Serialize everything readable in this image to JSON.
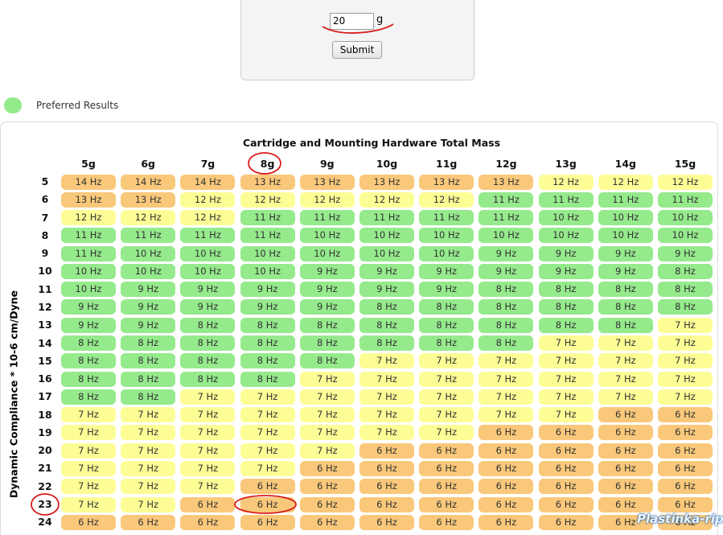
{
  "form": {
    "input_value": "20",
    "unit": "g",
    "button": "Submit"
  },
  "legend": {
    "label": "Preferred Results",
    "color": "#95ea8c"
  },
  "table": {
    "title": "Cartridge and Mounting Hardware Total Mass",
    "y_label": "Dynamic Compliance * 10-6 cm/Dyne",
    "columns": [
      "5g",
      "6g",
      "7g",
      "8g",
      "9g",
      "10g",
      "11g",
      "12g",
      "13g",
      "14g",
      "15g"
    ],
    "rows": [
      {
        "label": "5",
        "cells": [
          "14 Hz",
          "14 Hz",
          "14 Hz",
          "13 Hz",
          "13 Hz",
          "13 Hz",
          "13 Hz",
          "13 Hz",
          "12 Hz",
          "12 Hz",
          "12 Hz"
        ],
        "colors": [
          "#fac87a",
          "#fac87a",
          "#fac87a",
          "#fac87a",
          "#fac87a",
          "#fac87a",
          "#fac87a",
          "#fac87a",
          "#fdfd96",
          "#fdfd96",
          "#fdfd96"
        ]
      },
      {
        "label": "6",
        "cells": [
          "13 Hz",
          "13 Hz",
          "12 Hz",
          "12 Hz",
          "12 Hz",
          "12 Hz",
          "12 Hz",
          "11 Hz",
          "11 Hz",
          "11 Hz",
          "11 Hz"
        ],
        "colors": [
          "#fac87a",
          "#fac87a",
          "#fdfd96",
          "#fdfd96",
          "#fdfd96",
          "#fdfd96",
          "#fdfd96",
          "#95ea8c",
          "#95ea8c",
          "#95ea8c",
          "#95ea8c"
        ]
      },
      {
        "label": "7",
        "cells": [
          "12 Hz",
          "12 Hz",
          "12 Hz",
          "11 Hz",
          "11 Hz",
          "11 Hz",
          "11 Hz",
          "11 Hz",
          "10 Hz",
          "10 Hz",
          "10 Hz"
        ],
        "colors": [
          "#fdfd96",
          "#fdfd96",
          "#fdfd96",
          "#95ea8c",
          "#95ea8c",
          "#95ea8c",
          "#95ea8c",
          "#95ea8c",
          "#95ea8c",
          "#95ea8c",
          "#95ea8c"
        ]
      },
      {
        "label": "8",
        "cells": [
          "11 Hz",
          "11 Hz",
          "11 Hz",
          "11 Hz",
          "10 Hz",
          "10 Hz",
          "10 Hz",
          "10 Hz",
          "10 Hz",
          "10 Hz",
          "10 Hz"
        ],
        "colors": [
          "#95ea8c",
          "#95ea8c",
          "#95ea8c",
          "#95ea8c",
          "#95ea8c",
          "#95ea8c",
          "#95ea8c",
          "#95ea8c",
          "#95ea8c",
          "#95ea8c",
          "#95ea8c"
        ]
      },
      {
        "label": "9",
        "cells": [
          "11 Hz",
          "10 Hz",
          "10 Hz",
          "10 Hz",
          "10 Hz",
          "10 Hz",
          "10 Hz",
          "9 Hz",
          "9 Hz",
          "9 Hz",
          "9 Hz"
        ],
        "colors": [
          "#95ea8c",
          "#95ea8c",
          "#95ea8c",
          "#95ea8c",
          "#95ea8c",
          "#95ea8c",
          "#95ea8c",
          "#95ea8c",
          "#95ea8c",
          "#95ea8c",
          "#95ea8c"
        ]
      },
      {
        "label": "10",
        "cells": [
          "10 Hz",
          "10 Hz",
          "10 Hz",
          "10 Hz",
          "9 Hz",
          "9 Hz",
          "9 Hz",
          "9 Hz",
          "9 Hz",
          "9 Hz",
          "8 Hz"
        ],
        "colors": [
          "#95ea8c",
          "#95ea8c",
          "#95ea8c",
          "#95ea8c",
          "#95ea8c",
          "#95ea8c",
          "#95ea8c",
          "#95ea8c",
          "#95ea8c",
          "#95ea8c",
          "#95ea8c"
        ]
      },
      {
        "label": "11",
        "cells": [
          "10 Hz",
          "9 Hz",
          "9 Hz",
          "9 Hz",
          "9 Hz",
          "9 Hz",
          "9 Hz",
          "8 Hz",
          "8 Hz",
          "8 Hz",
          "8 Hz"
        ],
        "colors": [
          "#95ea8c",
          "#95ea8c",
          "#95ea8c",
          "#95ea8c",
          "#95ea8c",
          "#95ea8c",
          "#95ea8c",
          "#95ea8c",
          "#95ea8c",
          "#95ea8c",
          "#95ea8c"
        ]
      },
      {
        "label": "12",
        "cells": [
          "9 Hz",
          "9 Hz",
          "9 Hz",
          "9 Hz",
          "9 Hz",
          "8 Hz",
          "8 Hz",
          "8 Hz",
          "8 Hz",
          "8 Hz",
          "8 Hz"
        ],
        "colors": [
          "#95ea8c",
          "#95ea8c",
          "#95ea8c",
          "#95ea8c",
          "#95ea8c",
          "#95ea8c",
          "#95ea8c",
          "#95ea8c",
          "#95ea8c",
          "#95ea8c",
          "#95ea8c"
        ]
      },
      {
        "label": "13",
        "cells": [
          "9 Hz",
          "9 Hz",
          "8 Hz",
          "8 Hz",
          "8 Hz",
          "8 Hz",
          "8 Hz",
          "8 Hz",
          "8 Hz",
          "8 Hz",
          "7 Hz"
        ],
        "colors": [
          "#95ea8c",
          "#95ea8c",
          "#95ea8c",
          "#95ea8c",
          "#95ea8c",
          "#95ea8c",
          "#95ea8c",
          "#95ea8c",
          "#95ea8c",
          "#95ea8c",
          "#fdfd96"
        ]
      },
      {
        "label": "14",
        "cells": [
          "8 Hz",
          "8 Hz",
          "8 Hz",
          "8 Hz",
          "8 Hz",
          "8 Hz",
          "8 Hz",
          "8 Hz",
          "7 Hz",
          "7 Hz",
          "7 Hz"
        ],
        "colors": [
          "#95ea8c",
          "#95ea8c",
          "#95ea8c",
          "#95ea8c",
          "#95ea8c",
          "#95ea8c",
          "#95ea8c",
          "#95ea8c",
          "#fdfd96",
          "#fdfd96",
          "#fdfd96"
        ]
      },
      {
        "label": "15",
        "cells": [
          "8 Hz",
          "8 Hz",
          "8 Hz",
          "8 Hz",
          "8 Hz",
          "7 Hz",
          "7 Hz",
          "7 Hz",
          "7 Hz",
          "7 Hz",
          "7 Hz"
        ],
        "colors": [
          "#95ea8c",
          "#95ea8c",
          "#95ea8c",
          "#95ea8c",
          "#95ea8c",
          "#fdfd96",
          "#fdfd96",
          "#fdfd96",
          "#fdfd96",
          "#fdfd96",
          "#fdfd96"
        ]
      },
      {
        "label": "16",
        "cells": [
          "8 Hz",
          "8 Hz",
          "8 Hz",
          "8 Hz",
          "7 Hz",
          "7 Hz",
          "7 Hz",
          "7 Hz",
          "7 Hz",
          "7 Hz",
          "7 Hz"
        ],
        "colors": [
          "#95ea8c",
          "#95ea8c",
          "#95ea8c",
          "#95ea8c",
          "#fdfd96",
          "#fdfd96",
          "#fdfd96",
          "#fdfd96",
          "#fdfd96",
          "#fdfd96",
          "#fdfd96"
        ]
      },
      {
        "label": "17",
        "cells": [
          "8 Hz",
          "8 Hz",
          "7 Hz",
          "7 Hz",
          "7 Hz",
          "7 Hz",
          "7 Hz",
          "7 Hz",
          "7 Hz",
          "7 Hz",
          "7 Hz"
        ],
        "colors": [
          "#95ea8c",
          "#95ea8c",
          "#fdfd96",
          "#fdfd96",
          "#fdfd96",
          "#fdfd96",
          "#fdfd96",
          "#fdfd96",
          "#fdfd96",
          "#fdfd96",
          "#fdfd96"
        ]
      },
      {
        "label": "18",
        "cells": [
          "7 Hz",
          "7 Hz",
          "7 Hz",
          "7 Hz",
          "7 Hz",
          "7 Hz",
          "7 Hz",
          "7 Hz",
          "7 Hz",
          "6 Hz",
          "6 Hz"
        ],
        "colors": [
          "#fdfd96",
          "#fdfd96",
          "#fdfd96",
          "#fdfd96",
          "#fdfd96",
          "#fdfd96",
          "#fdfd96",
          "#fdfd96",
          "#fdfd96",
          "#fac87a",
          "#fac87a"
        ]
      },
      {
        "label": "19",
        "cells": [
          "7 Hz",
          "7 Hz",
          "7 Hz",
          "7 Hz",
          "7 Hz",
          "7 Hz",
          "7 Hz",
          "6 Hz",
          "6 Hz",
          "6 Hz",
          "6 Hz"
        ],
        "colors": [
          "#fdfd96",
          "#fdfd96",
          "#fdfd96",
          "#fdfd96",
          "#fdfd96",
          "#fdfd96",
          "#fdfd96",
          "#fac87a",
          "#fac87a",
          "#fac87a",
          "#fac87a"
        ]
      },
      {
        "label": "20",
        "cells": [
          "7 Hz",
          "7 Hz",
          "7 Hz",
          "7 Hz",
          "7 Hz",
          "6 Hz",
          "6 Hz",
          "6 Hz",
          "6 Hz",
          "6 Hz",
          "6 Hz"
        ],
        "colors": [
          "#fdfd96",
          "#fdfd96",
          "#fdfd96",
          "#fdfd96",
          "#fdfd96",
          "#fac87a",
          "#fac87a",
          "#fac87a",
          "#fac87a",
          "#fac87a",
          "#fac87a"
        ]
      },
      {
        "label": "21",
        "cells": [
          "7 Hz",
          "7 Hz",
          "7 Hz",
          "7 Hz",
          "6 Hz",
          "6 Hz",
          "6 Hz",
          "6 Hz",
          "6 Hz",
          "6 Hz",
          "6 Hz"
        ],
        "colors": [
          "#fdfd96",
          "#fdfd96",
          "#fdfd96",
          "#fdfd96",
          "#fac87a",
          "#fac87a",
          "#fac87a",
          "#fac87a",
          "#fac87a",
          "#fac87a",
          "#fac87a"
        ]
      },
      {
        "label": "22",
        "cells": [
          "7 Hz",
          "7 Hz",
          "7 Hz",
          "6 Hz",
          "6 Hz",
          "6 Hz",
          "6 Hz",
          "6 Hz",
          "6 Hz",
          "6 Hz",
          "6 Hz"
        ],
        "colors": [
          "#fdfd96",
          "#fdfd96",
          "#fdfd96",
          "#fac87a",
          "#fac87a",
          "#fac87a",
          "#fac87a",
          "#fac87a",
          "#fac87a",
          "#fac87a",
          "#fac87a"
        ]
      },
      {
        "label": "23",
        "cells": [
          "7 Hz",
          "7 Hz",
          "6 Hz",
          "6 Hz",
          "6 Hz",
          "6 Hz",
          "6 Hz",
          "6 Hz",
          "6 Hz",
          "6 Hz",
          "6 Hz"
        ],
        "colors": [
          "#fdfd96",
          "#fdfd96",
          "#fac87a",
          "#fac87a",
          "#fac87a",
          "#fac87a",
          "#fac87a",
          "#fac87a",
          "#fac87a",
          "#fac87a",
          "#fac87a"
        ]
      },
      {
        "label": "24",
        "cells": [
          "6 Hz",
          "6 Hz",
          "6 Hz",
          "6 Hz",
          "6 Hz",
          "6 Hz",
          "6 Hz",
          "6 Hz",
          "6 Hz",
          "6 Hz",
          "6 Hz"
        ],
        "colors": [
          "#fac87a",
          "#fac87a",
          "#fac87a",
          "#fac87a",
          "#fac87a",
          "#fac87a",
          "#fac87a",
          "#fac87a",
          "#fac87a",
          "#fac87a",
          "#fac87a"
        ]
      }
    ]
  },
  "watermark": "Plastinka-rip"
}
